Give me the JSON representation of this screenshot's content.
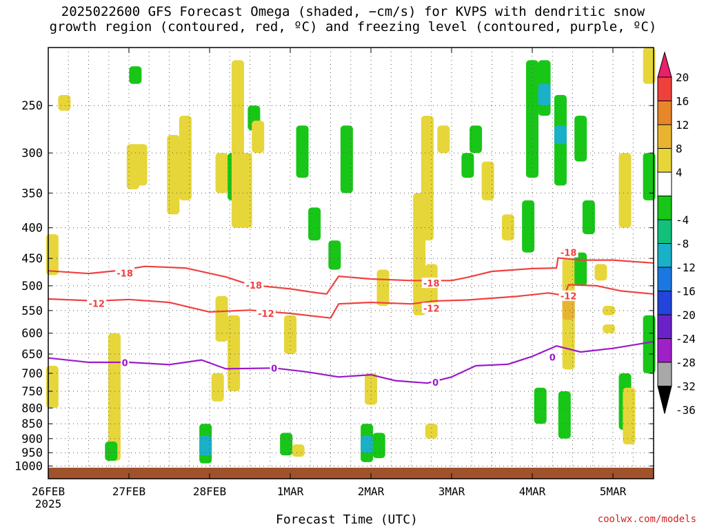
{
  "title_line1": "2025022600 GFS Forecast Omega (shaded, −cm/s) for KVPS with dendritic snow",
  "title_line2": "growth region (contoured, red, ºC) and freezing level (contoured, purple, ºC)",
  "credit": "coolwx.com/models",
  "chart_data": {
    "type": "heatmap",
    "xlabel": "Forecast Time (UTC)",
    "x_ticks": [
      {
        "day": 0,
        "label": "26FEB",
        "sublabel": "2025"
      },
      {
        "day": 1,
        "label": "27FEB"
      },
      {
        "day": 2,
        "label": "28FEB"
      },
      {
        "day": 3,
        "label": "1MAR"
      },
      {
        "day": 4,
        "label": "2MAR"
      },
      {
        "day": 5,
        "label": "3MAR"
      },
      {
        "day": 6,
        "label": "4MAR"
      },
      {
        "day": 7,
        "label": "5MAR"
      }
    ],
    "x_range_days": [
      0,
      7.5
    ],
    "y_axis": "pressure (hPa), log scale, inverted",
    "y_range": [
      1050,
      200
    ],
    "y_ticks": [
      250,
      300,
      350,
      400,
      450,
      500,
      550,
      600,
      650,
      700,
      750,
      800,
      850,
      900,
      950,
      1000
    ],
    "grid": true,
    "colorbar_labels": [
      "20",
      "16",
      "12",
      "8",
      "4",
      "-4",
      "-8",
      "-12",
      "-16",
      "-20",
      "-24",
      "-28",
      "-32",
      "-36"
    ],
    "colorbar_colors": [
      "#e81f6a",
      "#f0403c",
      "#e8862a",
      "#e8b430",
      "#e6d63a",
      "#ffffff",
      "#18c618",
      "#12c07a",
      "#1ab0c8",
      "#1a78e0",
      "#2244d8",
      "#6a22c8",
      "#a020c8",
      "#a8a8a8",
      "#000000"
    ],
    "surface_color": "#a0522d",
    "contours": [
      {
        "label": "-18",
        "color": "#f04040",
        "points": [
          [
            0,
            472
          ],
          [
            0.5,
            477
          ],
          [
            0.9,
            471
          ],
          [
            1.2,
            464
          ],
          [
            1.7,
            467
          ],
          [
            2.2,
            483
          ],
          [
            2.5,
            498
          ],
          [
            3.0,
            506
          ],
          [
            3.3,
            513
          ],
          [
            3.45,
            516
          ],
          [
            3.6,
            482
          ],
          [
            4.0,
            487
          ],
          [
            4.5,
            490
          ],
          [
            5.0,
            490
          ],
          [
            5.2,
            484
          ],
          [
            5.5,
            473
          ],
          [
            6.0,
            468
          ],
          [
            6.3,
            467
          ],
          [
            6.32,
            449
          ],
          [
            6.6,
            453
          ],
          [
            7.0,
            453
          ],
          [
            7.5,
            458
          ]
        ]
      },
      {
        "label": "-12",
        "color": "#f04040",
        "points": [
          [
            0,
            526
          ],
          [
            0.6,
            530
          ],
          [
            1.0,
            527
          ],
          [
            1.5,
            533
          ],
          [
            2.0,
            553
          ],
          [
            2.5,
            549
          ],
          [
            3.0,
            556
          ],
          [
            3.5,
            566
          ],
          [
            3.6,
            536
          ],
          [
            4.0,
            533
          ],
          [
            4.5,
            536
          ],
          [
            4.8,
            530
          ],
          [
            5.2,
            528
          ],
          [
            5.8,
            521
          ],
          [
            6.2,
            514
          ],
          [
            6.4,
            519
          ],
          [
            6.45,
            498
          ],
          [
            6.8,
            500
          ],
          [
            7.1,
            510
          ],
          [
            7.5,
            516
          ]
        ]
      },
      {
        "label": "0",
        "color": "#9a18c8",
        "points": [
          [
            0,
            660
          ],
          [
            0.5,
            671
          ],
          [
            1.0,
            671
          ],
          [
            1.5,
            677
          ],
          [
            1.9,
            665
          ],
          [
            2.2,
            688
          ],
          [
            2.8,
            686
          ],
          [
            3.2,
            696
          ],
          [
            3.6,
            710
          ],
          [
            4.0,
            704
          ],
          [
            4.3,
            720
          ],
          [
            4.7,
            727
          ],
          [
            5.0,
            710
          ],
          [
            5.3,
            680
          ],
          [
            5.7,
            676
          ],
          [
            6.0,
            656
          ],
          [
            6.3,
            630
          ],
          [
            6.6,
            645
          ],
          [
            7.0,
            636
          ],
          [
            7.5,
            620
          ]
        ]
      }
    ],
    "contour_labels": [
      {
        "text": "-18",
        "day": 0.95,
        "hPa": 476
      },
      {
        "text": "-18",
        "day": 2.55,
        "hPa": 499
      },
      {
        "text": "-18",
        "day": 4.75,
        "hPa": 495
      },
      {
        "text": "-18",
        "day": 6.45,
        "hPa": 440
      },
      {
        "text": "-12",
        "day": 0.6,
        "hPa": 535
      },
      {
        "text": "-12",
        "day": 2.7,
        "hPa": 556
      },
      {
        "text": "-12",
        "day": 4.75,
        "hPa": 545
      },
      {
        "text": "-12",
        "day": 6.45,
        "hPa": 520
      },
      {
        "text": "0",
        "day": 0.95,
        "hPa": 672
      },
      {
        "text": "0",
        "day": 2.8,
        "hPa": 686
      },
      {
        "text": "0",
        "day": 4.8,
        "hPa": 725
      },
      {
        "text": "0",
        "day": 6.25,
        "hPa": 658
      }
    ],
    "shaded_cells": [
      {
        "day": 0.05,
        "p_top": 410,
        "p_bot": 480,
        "value": 5
      },
      {
        "day": 0.05,
        "p_top": 680,
        "p_bot": 800,
        "value": 5
      },
      {
        "day": 0.2,
        "p_top": 240,
        "p_bot": 255,
        "value": 5
      },
      {
        "day": 0.82,
        "p_top": 600,
        "p_bot": 980,
        "value": 5
      },
      {
        "day": 0.78,
        "p_top": 910,
        "p_bot": 980,
        "value": -6
      },
      {
        "day": 1.05,
        "p_top": 290,
        "p_bot": 345,
        "value": 5
      },
      {
        "day": 1.08,
        "p_top": 215,
        "p_bot": 230,
        "value": -6
      },
      {
        "day": 1.15,
        "p_top": 290,
        "p_bot": 340,
        "value": 5
      },
      {
        "day": 1.55,
        "p_top": 280,
        "p_bot": 380,
        "value": 5
      },
      {
        "day": 1.7,
        "p_top": 260,
        "p_bot": 360,
        "value": 5
      },
      {
        "day": 1.95,
        "p_top": 850,
        "p_bot": 990,
        "value": -6
      },
      {
        "day": 1.95,
        "p_top": 890,
        "p_bot": 960,
        "value": -12
      },
      {
        "day": 2.1,
        "p_top": 700,
        "p_bot": 780,
        "value": 5
      },
      {
        "day": 2.15,
        "p_top": 300,
        "p_bot": 350,
        "value": 5
      },
      {
        "day": 2.15,
        "p_top": 520,
        "p_bot": 620,
        "value": 5
      },
      {
        "day": 2.3,
        "p_top": 300,
        "p_bot": 360,
        "value": -6
      },
      {
        "day": 2.35,
        "p_top": 210,
        "p_bot": 400,
        "value": 5
      },
      {
        "day": 2.45,
        "p_top": 300,
        "p_bot": 400,
        "value": 5
      },
      {
        "day": 2.3,
        "p_top": 560,
        "p_bot": 750,
        "value": 5
      },
      {
        "day": 2.55,
        "p_top": 250,
        "p_bot": 275,
        "value": -6
      },
      {
        "day": 2.6,
        "p_top": 265,
        "p_bot": 300,
        "value": 5
      },
      {
        "day": 2.95,
        "p_top": 880,
        "p_bot": 960,
        "value": -6
      },
      {
        "day": 3.0,
        "p_top": 560,
        "p_bot": 650,
        "value": 5
      },
      {
        "day": 3.1,
        "p_top": 920,
        "p_bot": 965,
        "value": 5
      },
      {
        "day": 3.15,
        "p_top": 270,
        "p_bot": 330,
        "value": -6
      },
      {
        "day": 3.3,
        "p_top": 370,
        "p_bot": 420,
        "value": -6
      },
      {
        "day": 3.55,
        "p_top": 420,
        "p_bot": 470,
        "value": -6
      },
      {
        "day": 3.7,
        "p_top": 270,
        "p_bot": 350,
        "value": -6
      },
      {
        "day": 3.95,
        "p_top": 850,
        "p_bot": 985,
        "value": -6
      },
      {
        "day": 3.95,
        "p_top": 890,
        "p_bot": 950,
        "value": -12
      },
      {
        "day": 4.1,
        "p_top": 880,
        "p_bot": 970,
        "value": -6
      },
      {
        "day": 4.0,
        "p_top": 700,
        "p_bot": 790,
        "value": 5
      },
      {
        "day": 4.15,
        "p_top": 470,
        "p_bot": 540,
        "value": 5
      },
      {
        "day": 4.6,
        "p_top": 350,
        "p_bot": 560,
        "value": 5
      },
      {
        "day": 4.7,
        "p_top": 260,
        "p_bot": 420,
        "value": 5
      },
      {
        "day": 4.75,
        "p_top": 460,
        "p_bot": 540,
        "value": 5
      },
      {
        "day": 4.75,
        "p_top": 850,
        "p_bot": 900,
        "value": 5
      },
      {
        "day": 4.9,
        "p_top": 270,
        "p_bot": 300,
        "value": 5
      },
      {
        "day": 5.2,
        "p_top": 300,
        "p_bot": 330,
        "value": -6
      },
      {
        "day": 5.3,
        "p_top": 270,
        "p_bot": 300,
        "value": -6
      },
      {
        "day": 5.45,
        "p_top": 310,
        "p_bot": 360,
        "value": 5
      },
      {
        "day": 5.7,
        "p_top": 380,
        "p_bot": 420,
        "value": 5
      },
      {
        "day": 5.95,
        "p_top": 360,
        "p_bot": 440,
        "value": -6
      },
      {
        "day": 6.0,
        "p_top": 210,
        "p_bot": 330,
        "value": -6
      },
      {
        "day": 6.15,
        "p_top": 210,
        "p_bot": 260,
        "value": -6
      },
      {
        "day": 6.15,
        "p_top": 230,
        "p_bot": 250,
        "value": -12
      },
      {
        "day": 6.35,
        "p_top": 240,
        "p_bot": 340,
        "value": -6
      },
      {
        "day": 6.35,
        "p_top": 270,
        "p_bot": 290,
        "value": -12
      },
      {
        "day": 6.6,
        "p_top": 260,
        "p_bot": 310,
        "value": -6
      },
      {
        "day": 6.1,
        "p_top": 740,
        "p_bot": 850,
        "value": -6
      },
      {
        "day": 6.4,
        "p_top": 750,
        "p_bot": 900,
        "value": -6
      },
      {
        "day": 6.45,
        "p_top": 450,
        "p_bot": 690,
        "value": 5
      },
      {
        "day": 6.45,
        "p_top": 520,
        "p_bot": 570,
        "value": 8
      },
      {
        "day": 6.6,
        "p_top": 440,
        "p_bot": 500,
        "value": -6
      },
      {
        "day": 6.7,
        "p_top": 360,
        "p_bot": 410,
        "value": -6
      },
      {
        "day": 6.85,
        "p_top": 460,
        "p_bot": 490,
        "value": 5
      },
      {
        "day": 6.95,
        "p_top": 540,
        "p_bot": 560,
        "value": 5
      },
      {
        "day": 6.95,
        "p_top": 580,
        "p_bot": 600,
        "value": 5
      },
      {
        "day": 7.15,
        "p_top": 300,
        "p_bot": 400,
        "value": 5
      },
      {
        "day": 7.15,
        "p_top": 700,
        "p_bot": 870,
        "value": -6
      },
      {
        "day": 7.2,
        "p_top": 740,
        "p_bot": 920,
        "value": 5
      },
      {
        "day": 7.45,
        "p_top": 300,
        "p_bot": 360,
        "value": -6
      },
      {
        "day": 7.45,
        "p_top": 200,
        "p_bot": 230,
        "value": 5
      },
      {
        "day": 7.45,
        "p_top": 560,
        "p_bot": 700,
        "value": -6
      }
    ]
  }
}
